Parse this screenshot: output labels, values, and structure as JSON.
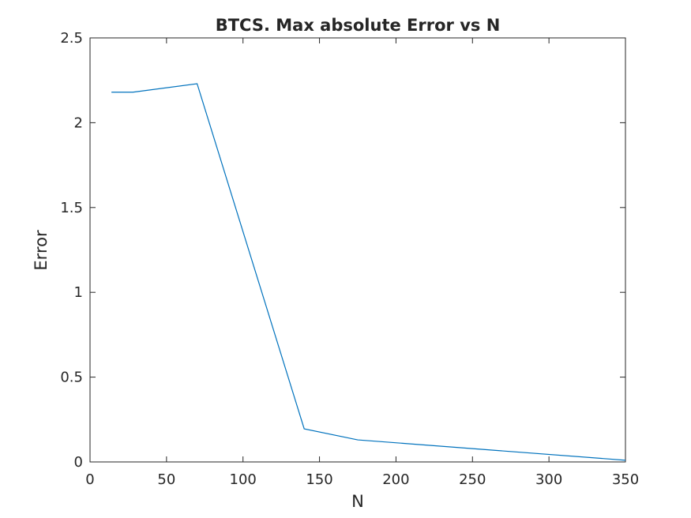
{
  "chart_data": {
    "type": "line",
    "title": "BTCS. Max absolute Error vs N",
    "xlabel": "N",
    "ylabel": "Error",
    "xlim": [
      0,
      350
    ],
    "ylim": [
      0,
      2.5
    ],
    "x_ticks": [
      "0",
      "50",
      "100",
      "150",
      "200",
      "250",
      "300",
      "350"
    ],
    "y_ticks": [
      "0",
      "0.5",
      "1",
      "1.5",
      "2",
      "2.5"
    ],
    "grid": false,
    "series": [
      {
        "color": "#0072BD",
        "x": [
          14,
          28,
          70,
          140,
          175,
          350
        ],
        "y": [
          2.18,
          2.18,
          2.23,
          0.195,
          0.13,
          0.01
        ]
      }
    ]
  }
}
